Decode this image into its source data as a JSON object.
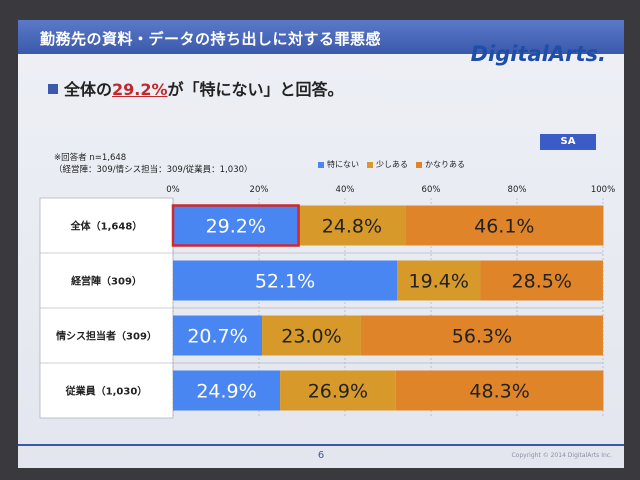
{
  "slide": {
    "title": "勤務先の資料・データの持ち出しに対する罪悪感",
    "logo": "DigitalArts.",
    "subtitle_pre": "全体の",
    "subtitle_highlight": "29.2%",
    "subtitle_post": "が「特にない」と回答。",
    "badge": "SA",
    "note_line1": "※回答者 n=1,648",
    "note_line2": "（経営陣：309/情シス担当：309/従業員：1,030）",
    "page_number": "6",
    "copyright": "Copyright © 2014 DigitalArts Inc."
  },
  "chart_data": {
    "type": "bar",
    "orientation": "horizontal",
    "stacked": "percent",
    "categories": [
      "全体（1,648）",
      "経営陣（309）",
      "情シス担当者（309）",
      "従業員（1,030）"
    ],
    "series": [
      {
        "name": "特にない",
        "values": [
          29.2,
          52.1,
          20.7,
          24.9
        ],
        "color": "#4a86f2",
        "label_color": "#ffffff"
      },
      {
        "name": "少しある",
        "values": [
          24.8,
          19.4,
          23.0,
          26.9
        ],
        "color": "#d79a2a",
        "label_color": "#222222"
      },
      {
        "name": "かなりある",
        "values": [
          46.1,
          28.5,
          56.3,
          48.3
        ],
        "color": "#e0842a",
        "label_color": "#222222"
      }
    ],
    "data_labels": [
      [
        "29.2%",
        "24.8%",
        "46.1%"
      ],
      [
        "52.1%",
        "19.4%",
        "28.5%"
      ],
      [
        "20.7%",
        "23.0%",
        "56.3%"
      ],
      [
        "24.9%",
        "26.9%",
        "48.3%"
      ]
    ],
    "x_ticks": [
      "0%",
      "20%",
      "40%",
      "60%",
      "80%",
      "100%"
    ],
    "xlim": [
      0,
      100
    ],
    "highlight": {
      "category_index": 0,
      "series_index": 0,
      "color": "#d0282e"
    },
    "legend_position": "top"
  }
}
